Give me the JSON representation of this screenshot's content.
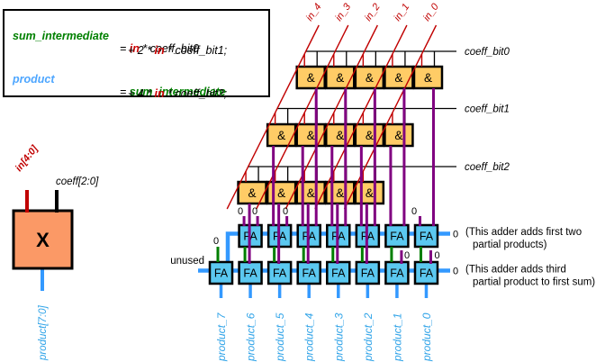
{
  "colors": {
    "wire_red": "#C00000",
    "wire_purple": "#800080",
    "wire_green": "#007F00",
    "wire_blue": "#3399FF",
    "wire_black": "#000000",
    "and_fill": "#FFCC66",
    "fa_fill": "#5BC8F0",
    "mult_fill": "#FB9966",
    "product_label_blue": "#2FA3E8",
    "eq_green": "#008000",
    "eq_red": "#CC0000",
    "eq_blue": "#4DA6FF"
  },
  "equation_box": {
    "line1": {
      "lhs": "sum_intermediate",
      "eq": "= ",
      "var": "in",
      "tail": " * coeff_bit0"
    },
    "line2": {
      "pre": "+ 2 * ",
      "var": "in",
      "tail": " * coeff_bit1;"
    },
    "line3": {
      "lhs": "product",
      "eq": "= ",
      "rhs": "sum_intermediate"
    },
    "line4": {
      "pre": "+ 4 * ",
      "var": "in",
      "tail": " * coeff_bit2;"
    }
  },
  "multiplier_block": {
    "symbol": "X",
    "input_label": "in[4:0]",
    "coeff_label": "coeff[2:0]",
    "output_label": "product[7:0]"
  },
  "array_diagram": {
    "input_labels": [
      "in_4",
      "in_3",
      "in_2",
      "in_1",
      "in_0"
    ],
    "coeff_labels": [
      "coeff_bit0",
      "coeff_bit1",
      "coeff_bit2"
    ],
    "and_gate_symbol": "&",
    "full_adder_label": "FA",
    "zero_label": "0",
    "unused_label": "unused",
    "adder1_note": [
      "(This adder adds first two",
      "partial products)"
    ],
    "adder2_note": [
      "(This adder adds third",
      "partial product to first sum)"
    ],
    "product_labels": [
      "product_7",
      "product_6",
      "product_5",
      "product_4",
      "product_3",
      "product_2",
      "product_1",
      "product_0"
    ]
  }
}
